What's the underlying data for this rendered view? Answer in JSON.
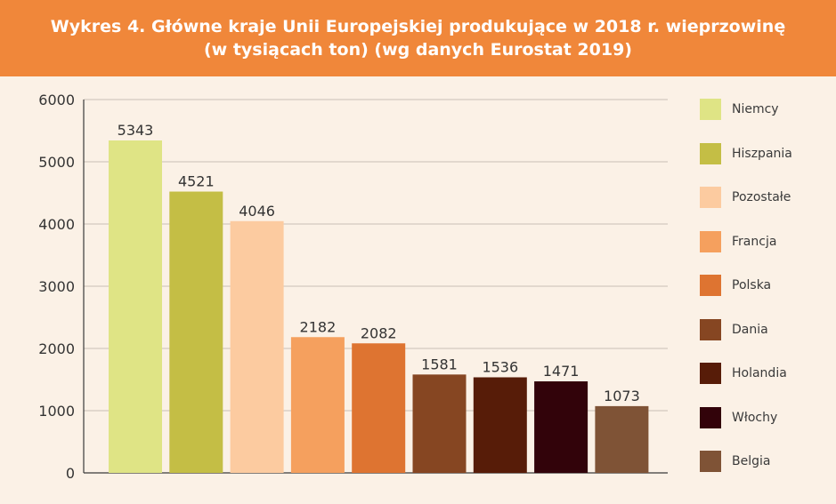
{
  "header": {
    "title_line1": "Wykres 4. Główne kraje Unii Europejskiej produkujące w 2018 r. wieprzowinę",
    "title_line2": "(w tysiącach ton) (wg danych Eurostat 2019)"
  },
  "chart_data": {
    "type": "bar",
    "title": "Wykres 4. Główne kraje Unii Europejskiej produkujące w 2018 r. wieprzowinę (w tysiącach ton) (wg danych Eurostat 2019)",
    "categories": [
      "Niemcy",
      "Hiszpania",
      "Pozostałe",
      "Francja",
      "Polska",
      "Dania",
      "Holandia",
      "Włochy",
      "Belgia"
    ],
    "values": [
      5343,
      4521,
      4046,
      2182,
      2082,
      1581,
      1536,
      1471,
      1073
    ],
    "colors": [
      "#dfe485",
      "#c4be45",
      "#fccba0",
      "#f5a05e",
      "#de7431",
      "#864622",
      "#571c08",
      "#32030a",
      "#7f5336"
    ],
    "ylim": [
      0,
      6000
    ],
    "yticks": [
      0,
      1000,
      2000,
      3000,
      4000,
      5000,
      6000
    ],
    "grid": true,
    "legend": "right",
    "xlabel": "",
    "ylabel": ""
  }
}
